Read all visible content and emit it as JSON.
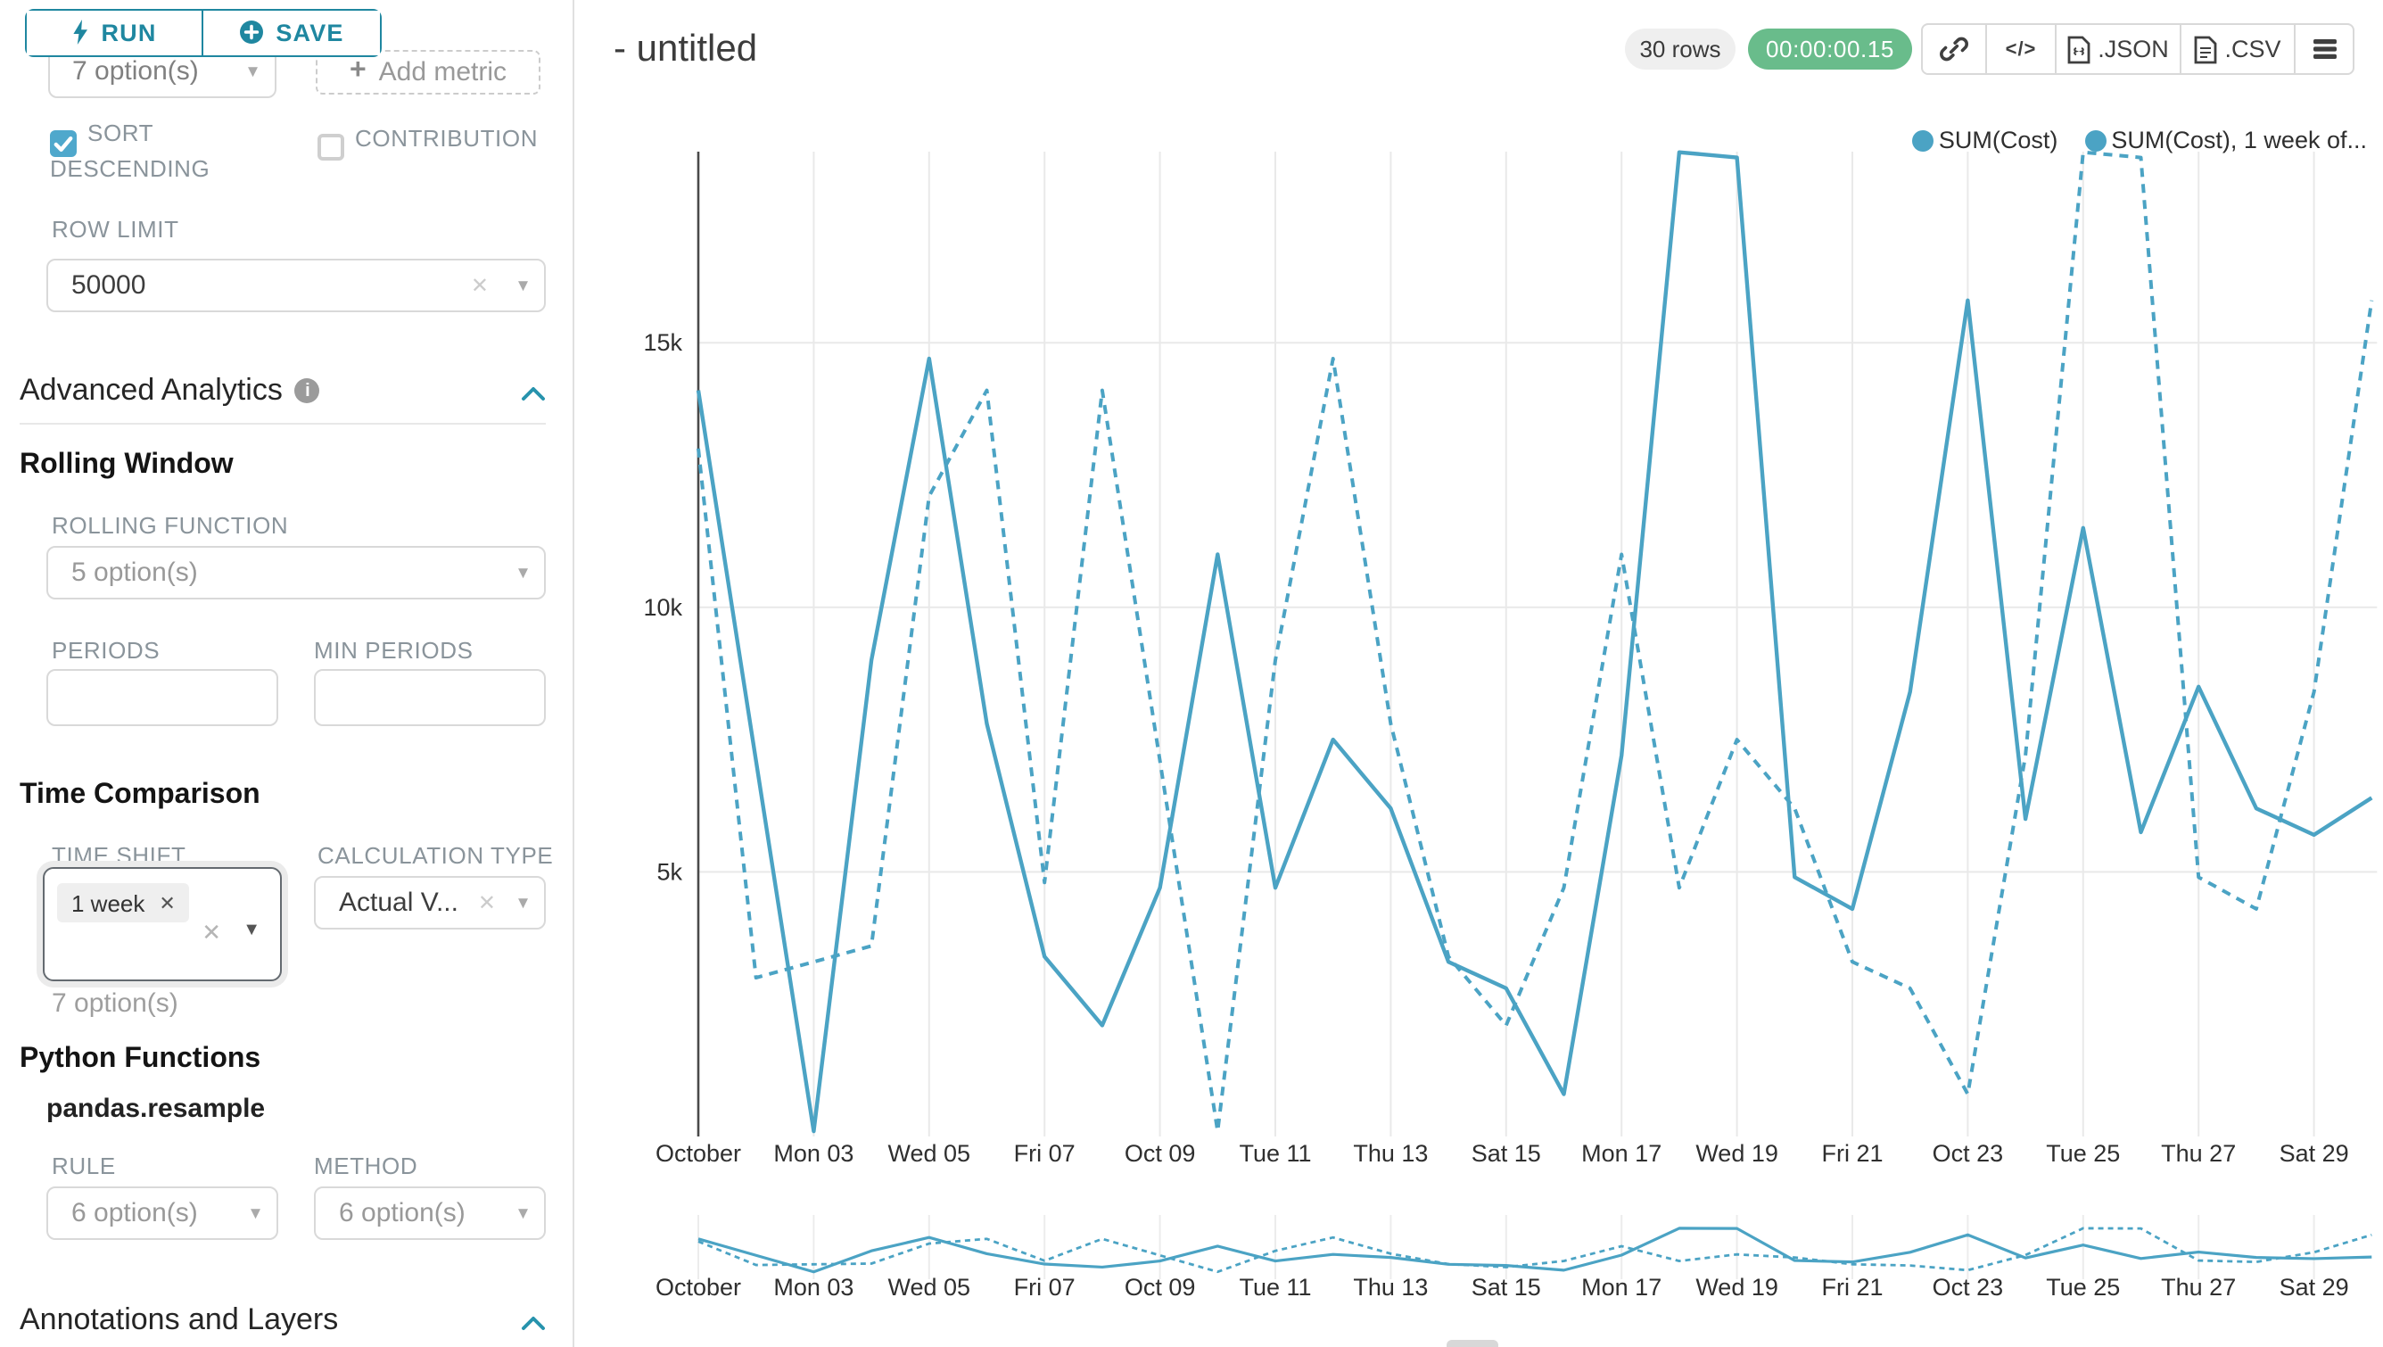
{
  "colors": {
    "accent": "#1f87a0",
    "line": "#4ba3c4",
    "success_badge": "#69bc8b",
    "checkbox": "#4fa8cc",
    "chevron": "#2793ad",
    "grid": "#e9e9e9",
    "axis": "#4a4a4a"
  },
  "icons": {
    "caret": "▾",
    "caret_dark": "▼",
    "clear": "✕",
    "tag_close": "✕",
    "plus": "+"
  },
  "toolbar": {
    "run": "RUN",
    "save": "SAVE"
  },
  "query": {
    "groupby_value": "7 option(s)",
    "add_metric": "Add metric",
    "sort_line1": "SORT",
    "sort_line2": "DESCENDING",
    "contribution": "CONTRIBUTION",
    "row_limit_label": "ROW LIMIT",
    "row_limit_value": "50000"
  },
  "advanced": {
    "title": "Advanced Analytics",
    "rolling": {
      "title": "Rolling Window",
      "function_label": "ROLLING FUNCTION",
      "function_value": "5 option(s)",
      "periods_label": "PERIODS",
      "min_periods_label": "MIN PERIODS"
    },
    "time_comparison": {
      "title": "Time Comparison",
      "time_shift_label": "TIME SHIFT",
      "time_shift_tag": "1 week",
      "time_shift_helper": "7 option(s)",
      "calc_label": "CALCULATION TYPE",
      "calc_value": "Actual V..."
    },
    "python": {
      "title": "Python Functions",
      "function_name": "pandas.resample",
      "rule_label": "RULE",
      "rule_value": "6 option(s)",
      "method_label": "METHOD",
      "method_value": "6 option(s)"
    },
    "annotations_title": "Annotations and Layers"
  },
  "header": {
    "title": "- untitled",
    "rows_badge": "30 rows",
    "timer": "00:00:00.15",
    "code_glyph": "</>",
    "json_label": ".JSON",
    "csv_label": ".CSV"
  },
  "chart_data": {
    "type": "line",
    "y_unit": "k",
    "x_tick_labels": [
      "October",
      "Mon 03",
      "Wed 05",
      "Fri 07",
      "Oct 09",
      "Tue 11",
      "Thu 13",
      "Sat 15",
      "Mon 17",
      "Wed 19",
      "Fri 21",
      "Oct 23",
      "Tue 25",
      "Thu 27",
      "Sat 29"
    ],
    "y_tick_labels": [
      "5k",
      "10k",
      "15k"
    ],
    "y_tick_values": [
      5,
      10,
      15
    ],
    "ylim": [
      0,
      18.8
    ],
    "grid": true,
    "legend_position": "top-right",
    "series": [
      {
        "name": "SUM(Cost)",
        "line_style": "solid",
        "values": [
          14.1,
          7.1,
          0.1,
          9.0,
          14.7,
          7.8,
          3.4,
          2.1,
          4.7,
          11.0,
          4.7,
          7.5,
          6.2,
          3.3,
          2.8,
          0.8,
          7.2,
          18.6,
          18.5,
          4.9,
          4.3,
          8.4,
          15.8,
          6.0,
          11.5,
          5.75,
          8.5,
          6.2,
          5.7,
          6.4
        ]
      },
      {
        "name": "SUM(Cost), 1 week of...",
        "line_style": "dashed",
        "values": [
          13.0,
          3.0,
          3.3,
          3.6,
          12.1,
          14.1,
          4.8,
          14.1,
          7.1,
          0.1,
          9.0,
          14.7,
          7.8,
          3.4,
          2.1,
          4.7,
          11.0,
          4.7,
          7.5,
          6.2,
          3.3,
          2.8,
          0.8,
          7.2,
          18.6,
          18.5,
          4.9,
          4.3,
          8.4,
          15.8
        ]
      }
    ]
  }
}
